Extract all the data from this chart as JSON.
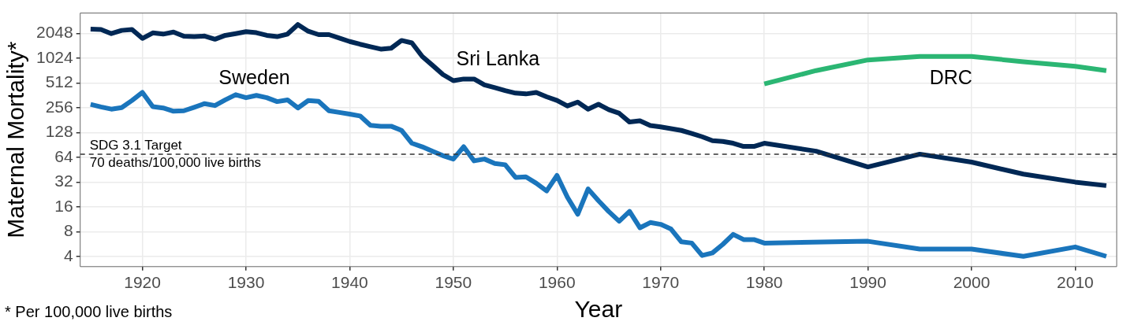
{
  "chart_data": {
    "type": "line",
    "xlabel": "Year",
    "ylabel": "Maternal Mortality*",
    "log": "y",
    "grid": true,
    "legend": false,
    "marker": "none",
    "line_style": "solid",
    "xlim": [
      1914,
      2014
    ],
    "xticks": [
      1920,
      1930,
      1940,
      1950,
      1960,
      1970,
      1980,
      1990,
      2000,
      2010
    ],
    "ylim": [
      3,
      3640
    ],
    "yticks": [
      4,
      8,
      16,
      32,
      64,
      128,
      256,
      512,
      1024,
      2048
    ],
    "series": [
      {
        "name": "Sri Lanka",
        "color": "#002855",
        "x": [
          1915,
          1916,
          1917,
          1918,
          1919,
          1920,
          1921,
          1922,
          1923,
          1924,
          1925,
          1926,
          1927,
          1928,
          1929,
          1930,
          1931,
          1932,
          1933,
          1934,
          1935,
          1936,
          1937,
          1938,
          1939,
          1940,
          1941,
          1942,
          1943,
          1944,
          1945,
          1946,
          1947,
          1948,
          1949,
          1950,
          1951,
          1952,
          1953,
          1954,
          1955,
          1956,
          1957,
          1958,
          1959,
          1960,
          1961,
          1962,
          1963,
          1964,
          1965,
          1966,
          1967,
          1968,
          1969,
          1970,
          1971,
          1972,
          1973,
          1974,
          1975,
          1976,
          1977,
          1978,
          1979,
          1980,
          1985,
          1990,
          1995,
          2000,
          2005,
          2010,
          2013
        ],
        "values": [
          2320,
          2300,
          2048,
          2240,
          2300,
          1790,
          2090,
          2020,
          2140,
          1900,
          1880,
          1910,
          1750,
          1950,
          2048,
          2160,
          2100,
          1950,
          1880,
          2020,
          2640,
          2190,
          1990,
          1990,
          1810,
          1640,
          1520,
          1420,
          1325,
          1360,
          1690,
          1580,
          1080,
          840,
          650,
          548,
          574,
          574,
          487,
          451,
          415,
          387,
          378,
          394,
          349,
          315,
          270,
          301,
          247,
          283,
          243,
          220,
          172,
          178,
          156,
          150,
          143,
          136,
          125,
          114,
          102,
          100,
          95,
          87,
          87,
          95,
          76,
          49,
          70,
          56,
          40,
          32,
          29
        ]
      },
      {
        "name": "Sweden",
        "color": "#1a75bc",
        "x": [
          1915,
          1916,
          1917,
          1918,
          1919,
          1920,
          1921,
          1922,
          1923,
          1924,
          1925,
          1926,
          1927,
          1928,
          1929,
          1930,
          1931,
          1932,
          1933,
          1934,
          1935,
          1936,
          1937,
          1938,
          1939,
          1940,
          1941,
          1942,
          1943,
          1944,
          1945,
          1946,
          1947,
          1948,
          1949,
          1950,
          1951,
          1952,
          1953,
          1954,
          1955,
          1956,
          1957,
          1958,
          1959,
          1960,
          1961,
          1962,
          1963,
          1964,
          1965,
          1966,
          1967,
          1968,
          1969,
          1970,
          1971,
          1972,
          1973,
          1974,
          1975,
          1976,
          1977,
          1978,
          1979,
          1980,
          1990,
          1995,
          2000,
          2005,
          2010,
          2013
        ],
        "values": [
          282,
          263,
          247,
          258,
          315,
          394,
          265,
          255,
          233,
          236,
          260,
          288,
          273,
          320,
          370,
          340,
          363,
          340,
          305,
          320,
          255,
          314,
          307,
          236,
          225,
          215,
          204,
          157,
          153,
          153,
          136,
          95,
          86,
          76,
          67,
          61,
          86,
          58,
          61,
          54,
          52,
          36.5,
          37,
          31,
          25,
          38.5,
          21,
          13,
          26.4,
          19,
          14,
          10.7,
          14.1,
          8.9,
          10.3,
          9.8,
          8.6,
          6.0,
          5.8,
          4.1,
          4.4,
          5.6,
          7.4,
          6.4,
          6.4,
          5.8,
          6.1,
          4.9,
          4.9,
          4.0,
          5.2,
          4.0
        ]
      },
      {
        "name": "DRC",
        "color": "#2bb673",
        "x": [
          1980,
          1985,
          1990,
          1995,
          2000,
          2005,
          2010,
          2013
        ],
        "values": [
          501,
          727,
          980,
          1080,
          1080,
          930,
          818,
          727
        ]
      }
    ],
    "ref_lines": [
      {
        "axis": "y",
        "value": 70,
        "label": "SDG 3.1 Target\n70 deaths/100,000 live births",
        "color": "#333333",
        "line_style": "dashed"
      }
    ],
    "annotations": [
      "* Per 100,000 live births"
    ]
  }
}
